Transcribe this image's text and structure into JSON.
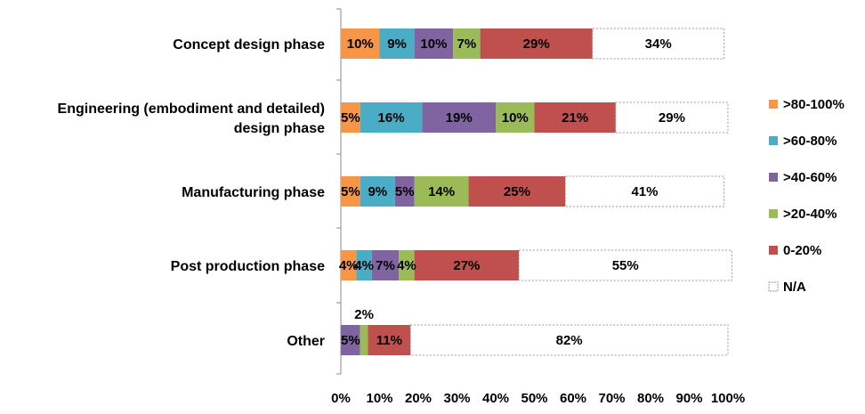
{
  "chart_data": {
    "type": "bar",
    "orientation": "horizontal",
    "stacked": true,
    "categories": [
      [
        "Concept design phase"
      ],
      [
        "Engineering (embodiment and detailed)",
        "design phase"
      ],
      [
        "Manufacturing phase"
      ],
      [
        "Post production phase"
      ],
      [
        "Other"
      ]
    ],
    "series": [
      {
        "name": ">80-100%",
        "color": "#F79646",
        "values": [
          10,
          5,
          5,
          4,
          0
        ]
      },
      {
        "name": ">60-80%",
        "color": "#4BACC6",
        "values": [
          9,
          16,
          9,
          4,
          0
        ]
      },
      {
        "name": ">40-60%",
        "color": "#8064A2",
        "values": [
          10,
          19,
          5,
          7,
          5
        ]
      },
      {
        "name": ">20-40%",
        "color": "#9BBB59",
        "values": [
          7,
          10,
          14,
          4,
          2
        ]
      },
      {
        "name": "0-20%",
        "color": "#C0504D",
        "values": [
          29,
          21,
          25,
          27,
          11
        ]
      },
      {
        "name": "N/A",
        "color": "#FFFFFF",
        "values": [
          34,
          29,
          41,
          55,
          82
        ]
      }
    ],
    "xlim": [
      0,
      100
    ],
    "xticks": [
      "0%",
      "10%",
      "20%",
      "30%",
      "40%",
      "50%",
      "60%",
      "70%",
      "80%",
      "90%",
      "100%"
    ],
    "legend_position": "right",
    "grid": false
  }
}
